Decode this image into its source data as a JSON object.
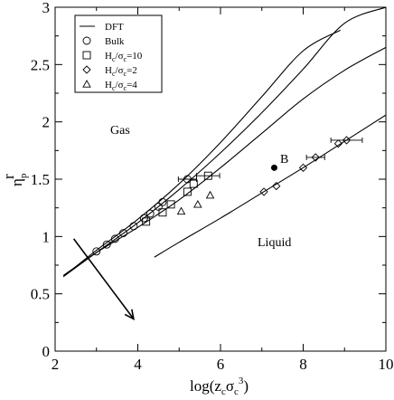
{
  "chart_data": {
    "type": "scatter",
    "xlabel_main": "log(z",
    "xlabel_sub1": "c",
    "xlabel_sigma": "σ",
    "xlabel_sub2": "c",
    "xlabel_sup": "3",
    "xlabel_close": ")",
    "ylabel_main": "η",
    "ylabel_sub": "p",
    "ylabel_sup": "r",
    "xlim": [
      2,
      10
    ],
    "ylim": [
      0,
      3
    ],
    "xticks": [
      2,
      4,
      6,
      8,
      10
    ],
    "yticks": [
      0,
      0.5,
      1,
      1.5,
      2,
      2.5,
      3
    ],
    "ytick_labels": [
      "0",
      "0.5",
      "1",
      "1.5",
      "2",
      "2.5",
      "3"
    ],
    "legend": {
      "placement": "top-left",
      "entries": [
        {
          "marker": "line",
          "label": "DFT"
        },
        {
          "marker": "circle",
          "label": "Bulk"
        },
        {
          "marker": "square",
          "label": "H",
          "sub": "c",
          "mid": "/σ",
          "sub2": "c",
          "tail": "=10"
        },
        {
          "marker": "diamond",
          "label": "H",
          "sub": "c",
          "mid": "/σ",
          "sub2": "c",
          "tail": "=2"
        },
        {
          "marker": "triangle",
          "label": "H",
          "sub": "c",
          "mid": "/σ",
          "sub2": "c",
          "tail": "=4"
        }
      ]
    },
    "annotations": {
      "gas": "Gas",
      "liquid": "Liquid",
      "point_label": "B"
    },
    "point_B": [
      7.3,
      1.6
    ],
    "arrow": {
      "from": [
        2.45,
        0.98
      ],
      "to": [
        3.9,
        0.28
      ]
    },
    "dft_curves": [
      [
        [
          2.2,
          0.65
        ],
        [
          3.0,
          0.88
        ],
        [
          4.0,
          1.15
        ],
        [
          5.0,
          1.46
        ],
        [
          6.0,
          1.82
        ],
        [
          7.0,
          2.22
        ],
        [
          8.0,
          2.62
        ],
        [
          8.9,
          2.8
        ]
      ],
      [
        [
          2.2,
          0.65
        ],
        [
          3.0,
          0.86
        ],
        [
          4.0,
          1.12
        ],
        [
          5.0,
          1.41
        ],
        [
          6.0,
          1.73
        ],
        [
          7.0,
          2.08
        ],
        [
          8.0,
          2.46
        ],
        [
          9.0,
          2.86
        ],
        [
          10.0,
          3.0
        ]
      ],
      [
        [
          2.2,
          0.66
        ],
        [
          3.0,
          0.86
        ],
        [
          4.0,
          1.08
        ],
        [
          5.0,
          1.32
        ],
        [
          6.0,
          1.6
        ],
        [
          7.0,
          1.9
        ],
        [
          8.0,
          2.2
        ],
        [
          9.0,
          2.45
        ],
        [
          10.0,
          2.65
        ]
      ],
      [
        [
          4.4,
          0.82
        ],
        [
          5.0,
          0.95
        ],
        [
          6.0,
          1.16
        ],
        [
          7.0,
          1.38
        ],
        [
          8.0,
          1.6
        ],
        [
          9.0,
          1.83
        ],
        [
          10.0,
          2.06
        ]
      ]
    ],
    "series": [
      {
        "name": "Bulk",
        "marker": "circle",
        "points": [
          [
            3.0,
            0.87
          ],
          [
            3.25,
            0.93
          ],
          [
            3.45,
            0.98
          ],
          [
            3.65,
            1.03
          ],
          [
            3.9,
            1.09
          ],
          [
            4.15,
            1.16
          ],
          [
            4.3,
            1.2
          ],
          [
            4.5,
            1.26
          ],
          [
            4.6,
            1.3
          ],
          [
            5.2,
            1.5
          ]
        ],
        "xerr": [
          [
            5.2,
            1.5,
            0.22
          ]
        ]
      },
      {
        "name": "Hc/σc=10",
        "marker": "square",
        "points": [
          [
            4.2,
            1.13
          ],
          [
            4.6,
            1.21
          ],
          [
            4.8,
            1.28
          ],
          [
            5.2,
            1.39
          ],
          [
            5.35,
            1.46
          ],
          [
            5.7,
            1.53
          ]
        ],
        "xerr": [
          [
            5.7,
            1.53,
            0.28
          ]
        ]
      },
      {
        "name": "Hc/σc=2",
        "marker": "diamond",
        "points": [
          [
            7.05,
            1.39
          ],
          [
            7.35,
            1.44
          ],
          [
            8.0,
            1.6
          ],
          [
            8.3,
            1.69
          ],
          [
            8.85,
            1.81
          ],
          [
            9.05,
            1.84
          ]
        ],
        "xerr": [
          [
            8.3,
            1.69,
            0.22
          ],
          [
            9.05,
            1.84,
            0.38
          ]
        ]
      },
      {
        "name": "Hc/σc=4",
        "marker": "triangle",
        "points": [
          [
            5.05,
            1.22
          ],
          [
            5.45,
            1.28
          ],
          [
            5.75,
            1.36
          ]
        ],
        "xerr": []
      }
    ]
  }
}
